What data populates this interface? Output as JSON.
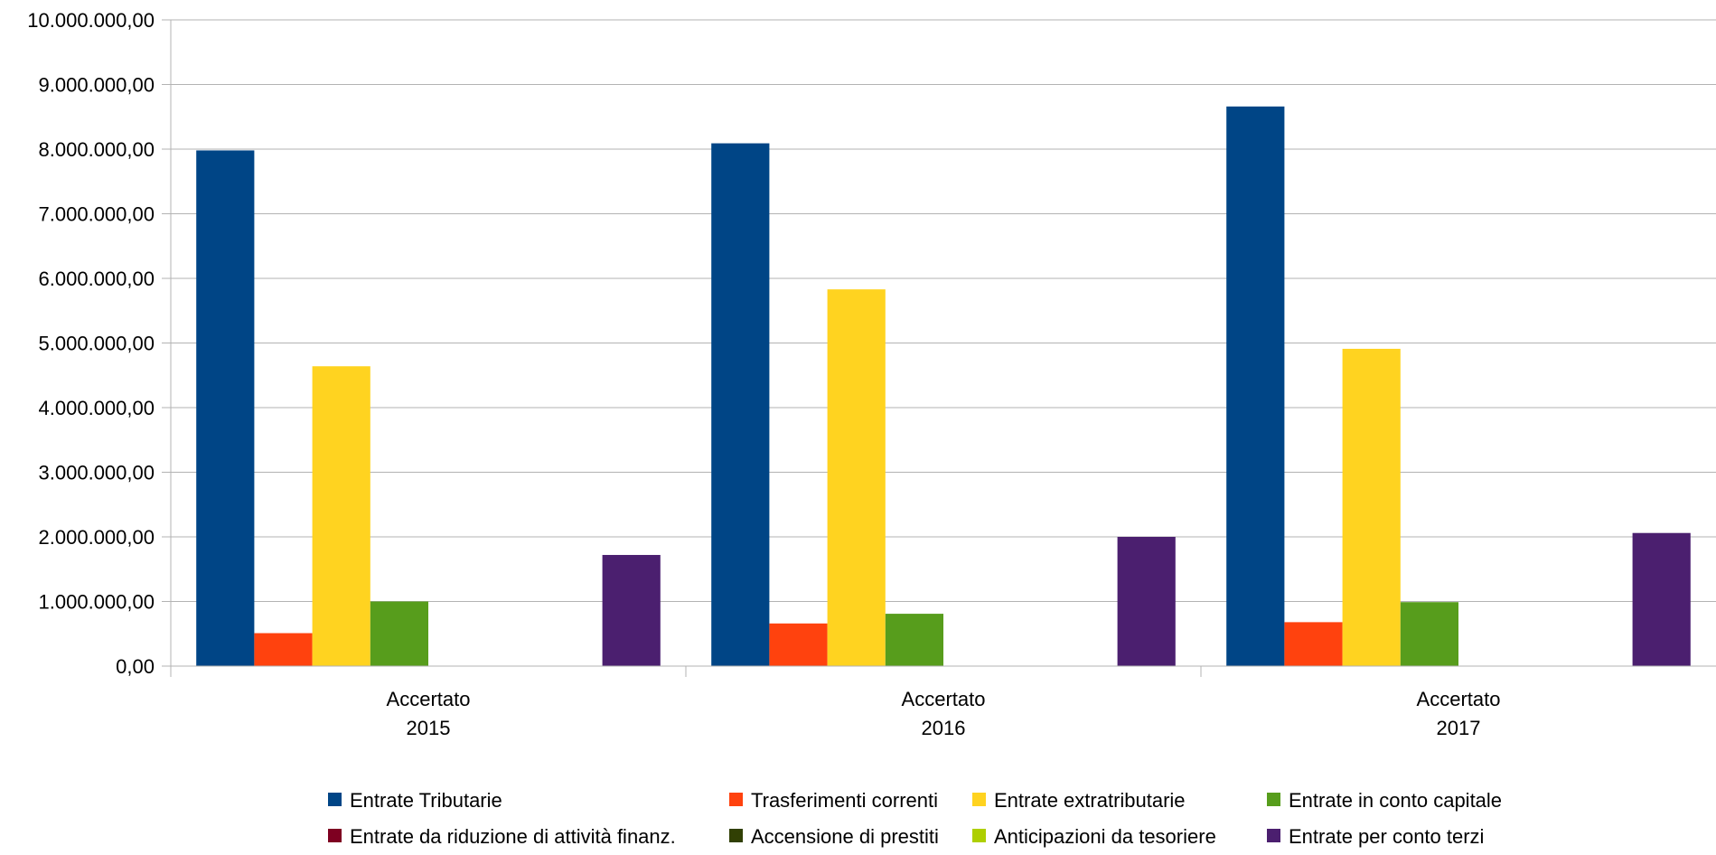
{
  "chart_data": {
    "type": "bar",
    "title": "",
    "xlabel": "",
    "ylabel": "",
    "ylim": [
      0,
      10000000
    ],
    "yticks": [
      0,
      1000000,
      2000000,
      3000000,
      4000000,
      5000000,
      6000000,
      7000000,
      8000000,
      9000000,
      10000000
    ],
    "ytick_labels": [
      "0,00",
      "1.000.000,00",
      "2.000.000,00",
      "3.000.000,00",
      "4.000.000,00",
      "5.000.000,00",
      "6.000.000,00",
      "7.000.000,00",
      "8.000.000,00",
      "9.000.000,00",
      "10.000.000,00"
    ],
    "grid": true,
    "legend_position": "bottom",
    "categories": [
      [
        "Accertato",
        "2015"
      ],
      [
        "Accertato",
        "2016"
      ],
      [
        "Accertato",
        "2017"
      ]
    ],
    "series": [
      {
        "name": "Entrate Tributarie",
        "color": "#004586",
        "values": [
          7980000,
          8090000,
          8660000
        ]
      },
      {
        "name": "Trasferimenti correnti",
        "color": "#ff420e",
        "values": [
          510000,
          660000,
          680000
        ]
      },
      {
        "name": "Entrate extratributarie",
        "color": "#ffd320",
        "values": [
          4640000,
          5830000,
          4910000
        ]
      },
      {
        "name": "Entrate in conto capitale",
        "color": "#579d1c",
        "values": [
          1000000,
          810000,
          990000
        ]
      },
      {
        "name": "Entrate da riduzione di attività finanz.",
        "color": "#7e0021",
        "values": [
          0,
          0,
          0
        ]
      },
      {
        "name": "Accensione di prestiti",
        "color": "#314004",
        "values": [
          0,
          0,
          0
        ]
      },
      {
        "name": "Anticipazioni da tesoriere",
        "color": "#aecf00",
        "values": [
          0,
          0,
          0
        ]
      },
      {
        "name": "Entrate per conto terzi",
        "color": "#4b1f6f",
        "values": [
          1720000,
          2000000,
          2060000
        ]
      }
    ]
  }
}
